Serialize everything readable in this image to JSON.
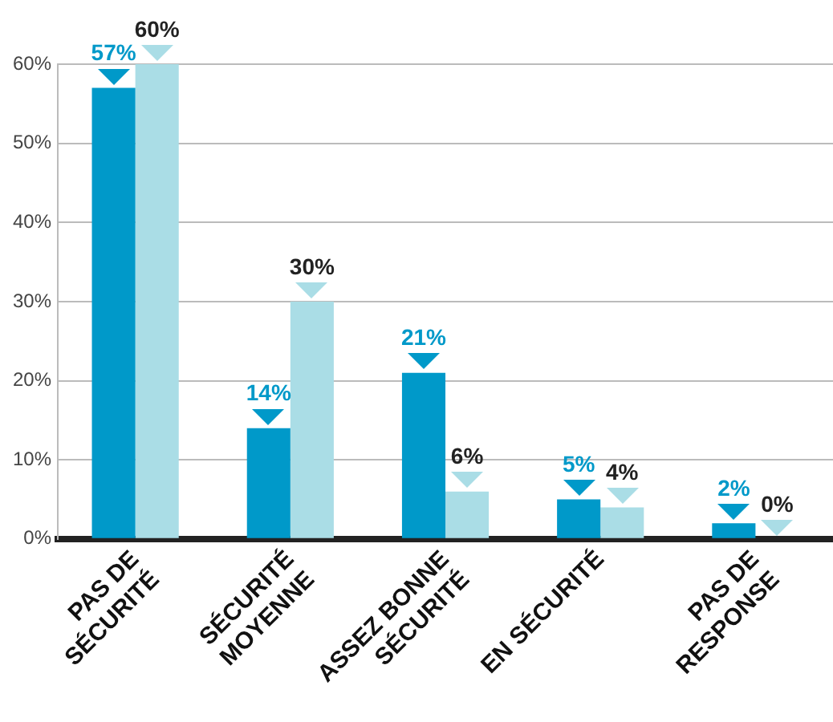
{
  "chart_data": {
    "type": "bar",
    "categories": [
      "PAS DE\nSÉCURITÉ",
      "SÉCURITÉ\nMOYENNE",
      "ASSEZ BONNE\nSÉCURITÉ",
      "EN SÉCURITÉ",
      "PAS DE\nRESPONSE"
    ],
    "series": [
      {
        "color": "#0099c9",
        "values": [
          57,
          14,
          21,
          5,
          2
        ],
        "value_labels": [
          "57%",
          "14%",
          "21%",
          "5%",
          "2%"
        ]
      },
      {
        "color": "#aadde6",
        "values": [
          60,
          30,
          6,
          4,
          0
        ],
        "value_labels": [
          "60%",
          "30%",
          "6%",
          "4%",
          "0%"
        ]
      }
    ],
    "ylim": [
      0,
      60
    ],
    "yticks": [
      {
        "value": 0,
        "label": "0%"
      },
      {
        "value": 10,
        "label": "10%"
      },
      {
        "value": 20,
        "label": "20%"
      },
      {
        "value": 30,
        "label": "30%"
      },
      {
        "value": 40,
        "label": "40%"
      },
      {
        "value": 50,
        "label": "50%"
      },
      {
        "value": 60,
        "label": "60%"
      }
    ],
    "grid": "y",
    "legend": false
  }
}
